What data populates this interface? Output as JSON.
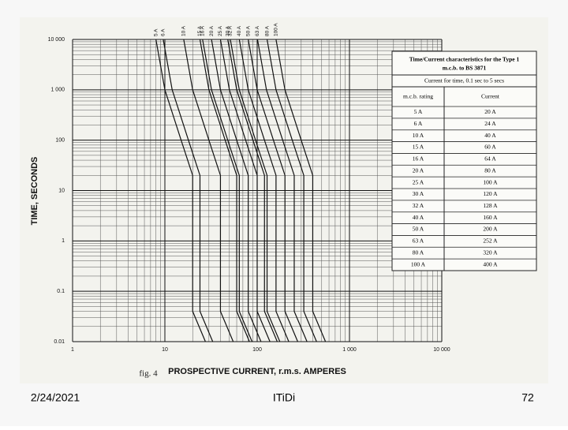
{
  "chart_data": {
    "type": "line",
    "xlabel": "PROSPECTIVE CURRENT, r.m.s. AMPERES",
    "ylabel": "TIME, SECONDS",
    "annotation": "fig. 4",
    "log_x": true,
    "log_y": true,
    "grid": true,
    "xlim": [
      1,
      10000
    ],
    "ylim": [
      0.01,
      10000
    ],
    "xticks": [
      1,
      10,
      100,
      {
        "value": 1000,
        "label": "1 000"
      },
      {
        "value": 10000,
        "label": "10 000"
      }
    ],
    "yticks": [
      0.01,
      0.1,
      1,
      10,
      100,
      {
        "value": 1000,
        "label": "1 000"
      },
      {
        "value": 10000,
        "label": "10 000"
      }
    ],
    "series": [
      {
        "name": "5 A",
        "color": "#111111",
        "x": [
          8,
          10,
          15,
          20,
          20,
          27.5
        ],
        "values": [
          10000,
          1000,
          100,
          20,
          0.04,
          0.01
        ]
      },
      {
        "name": "6 A",
        "color": "#111111",
        "x": [
          9.6,
          12,
          18,
          24,
          24,
          33
        ],
        "values": [
          10000,
          1000,
          100,
          20,
          0.04,
          0.01
        ]
      },
      {
        "name": "10 A",
        "color": "#111111",
        "x": [
          16,
          20,
          30,
          40,
          40,
          55
        ],
        "values": [
          10000,
          1000,
          100,
          20,
          0.04,
          0.01
        ]
      },
      {
        "name": "15 A",
        "color": "#111111",
        "x": [
          24,
          30,
          45,
          60,
          60,
          82.5
        ],
        "values": [
          10000,
          1000,
          100,
          20,
          0.04,
          0.01
        ]
      },
      {
        "name": "16 A",
        "color": "#111111",
        "x": [
          25.6,
          32,
          48,
          64,
          64,
          88
        ],
        "values": [
          10000,
          1000,
          100,
          20,
          0.04,
          0.01
        ]
      },
      {
        "name": "20 A",
        "color": "#111111",
        "x": [
          32,
          40,
          60,
          80,
          80,
          110
        ],
        "values": [
          10000,
          1000,
          100,
          20,
          0.04,
          0.01
        ]
      },
      {
        "name": "25 A",
        "color": "#111111",
        "x": [
          40,
          50,
          75,
          100,
          100,
          137.5
        ],
        "values": [
          10000,
          1000,
          100,
          20,
          0.04,
          0.01
        ]
      },
      {
        "name": "30 A",
        "color": "#111111",
        "x": [
          48,
          60,
          90,
          120,
          120,
          165
        ],
        "values": [
          10000,
          1000,
          100,
          20,
          0.04,
          0.01
        ]
      },
      {
        "name": "32 A",
        "color": "#111111",
        "x": [
          51.2,
          64,
          96,
          128,
          128,
          176
        ],
        "values": [
          10000,
          1000,
          100,
          20,
          0.04,
          0.01
        ]
      },
      {
        "name": "40 A",
        "color": "#111111",
        "x": [
          64,
          80,
          120,
          160,
          160,
          220
        ],
        "values": [
          10000,
          1000,
          100,
          20,
          0.04,
          0.01
        ]
      },
      {
        "name": "50 A",
        "color": "#111111",
        "x": [
          80,
          100,
          150,
          200,
          200,
          275
        ],
        "values": [
          10000,
          1000,
          100,
          20,
          0.04,
          0.01
        ]
      },
      {
        "name": "63 A",
        "color": "#111111",
        "x": [
          100.8,
          126,
          189,
          252,
          252,
          346.5
        ],
        "values": [
          10000,
          1000,
          100,
          20,
          0.04,
          0.01
        ]
      },
      {
        "name": "80 A",
        "color": "#111111",
        "x": [
          128,
          160,
          240,
          320,
          320,
          440
        ],
        "values": [
          10000,
          1000,
          100,
          20,
          0.04,
          0.01
        ]
      },
      {
        "name": "100 A",
        "color": "#111111",
        "x": [
          160,
          200,
          300,
          400,
          400,
          550
        ],
        "values": [
          10000,
          1000,
          100,
          20,
          0.04,
          0.01
        ]
      }
    ]
  },
  "table": {
    "title_lines": [
      "Time/Current characteristics for the Type 1",
      "m.c.b. to BS 3871"
    ],
    "subtitle": "Current for time, 0.1 sec to 5 secs",
    "headers": [
      "m.c.b. rating",
      "Current"
    ],
    "rows": [
      [
        "5 A",
        "20 A"
      ],
      [
        "6 A",
        "24 A"
      ],
      [
        "10 A",
        "40 A"
      ],
      [
        "15 A",
        "60 A"
      ],
      [
        "16 A",
        "64 A"
      ],
      [
        "20 A",
        "80 A"
      ],
      [
        "25 A",
        "100 A"
      ],
      [
        "30 A",
        "120 A"
      ],
      [
        "32 A",
        "128 A"
      ],
      [
        "40 A",
        "160 A"
      ],
      [
        "50 A",
        "200 A"
      ],
      [
        "63 A",
        "252 A"
      ],
      [
        "80 A",
        "320 A"
      ],
      [
        "100 A",
        "400 A"
      ]
    ]
  },
  "footer": {
    "date": "2/24/2021",
    "center": "ITiDi",
    "page": "72"
  }
}
